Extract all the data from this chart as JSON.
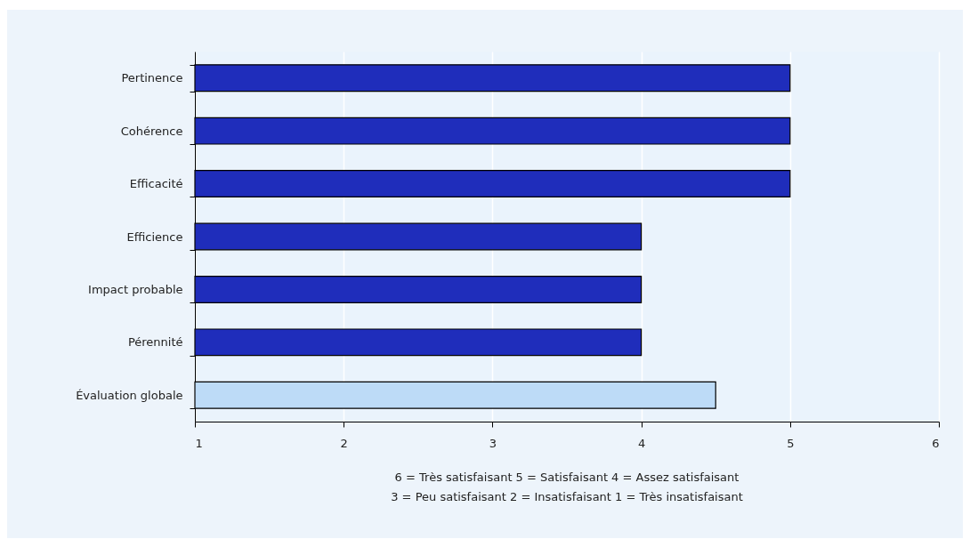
{
  "chart_data": {
    "type": "bar",
    "orientation": "horizontal",
    "categories": [
      "Pertinence",
      "Cohérence",
      "Efficacité",
      "Efficience",
      "Impact probable",
      "Pérennité",
      "Évaluation globale"
    ],
    "values": [
      5,
      5,
      5,
      4,
      4,
      4,
      4.5
    ],
    "colors": [
      "#1f2dbb",
      "#1f2dbb",
      "#1f2dbb",
      "#1f2dbb",
      "#1f2dbb",
      "#1f2dbb",
      "#bddbf7"
    ],
    "xlim": [
      1,
      6
    ],
    "xticks": [
      1,
      2,
      3,
      4,
      5,
      6
    ],
    "grid": "x",
    "annotations": [
      "6 = Très satisfaisant 5 = Satisfaisant 4 = Assez satisfaisant",
      "3 = Peu satisfaisant 2 = Insatisfaisant 1 = Très insatisfaisant"
    ]
  }
}
